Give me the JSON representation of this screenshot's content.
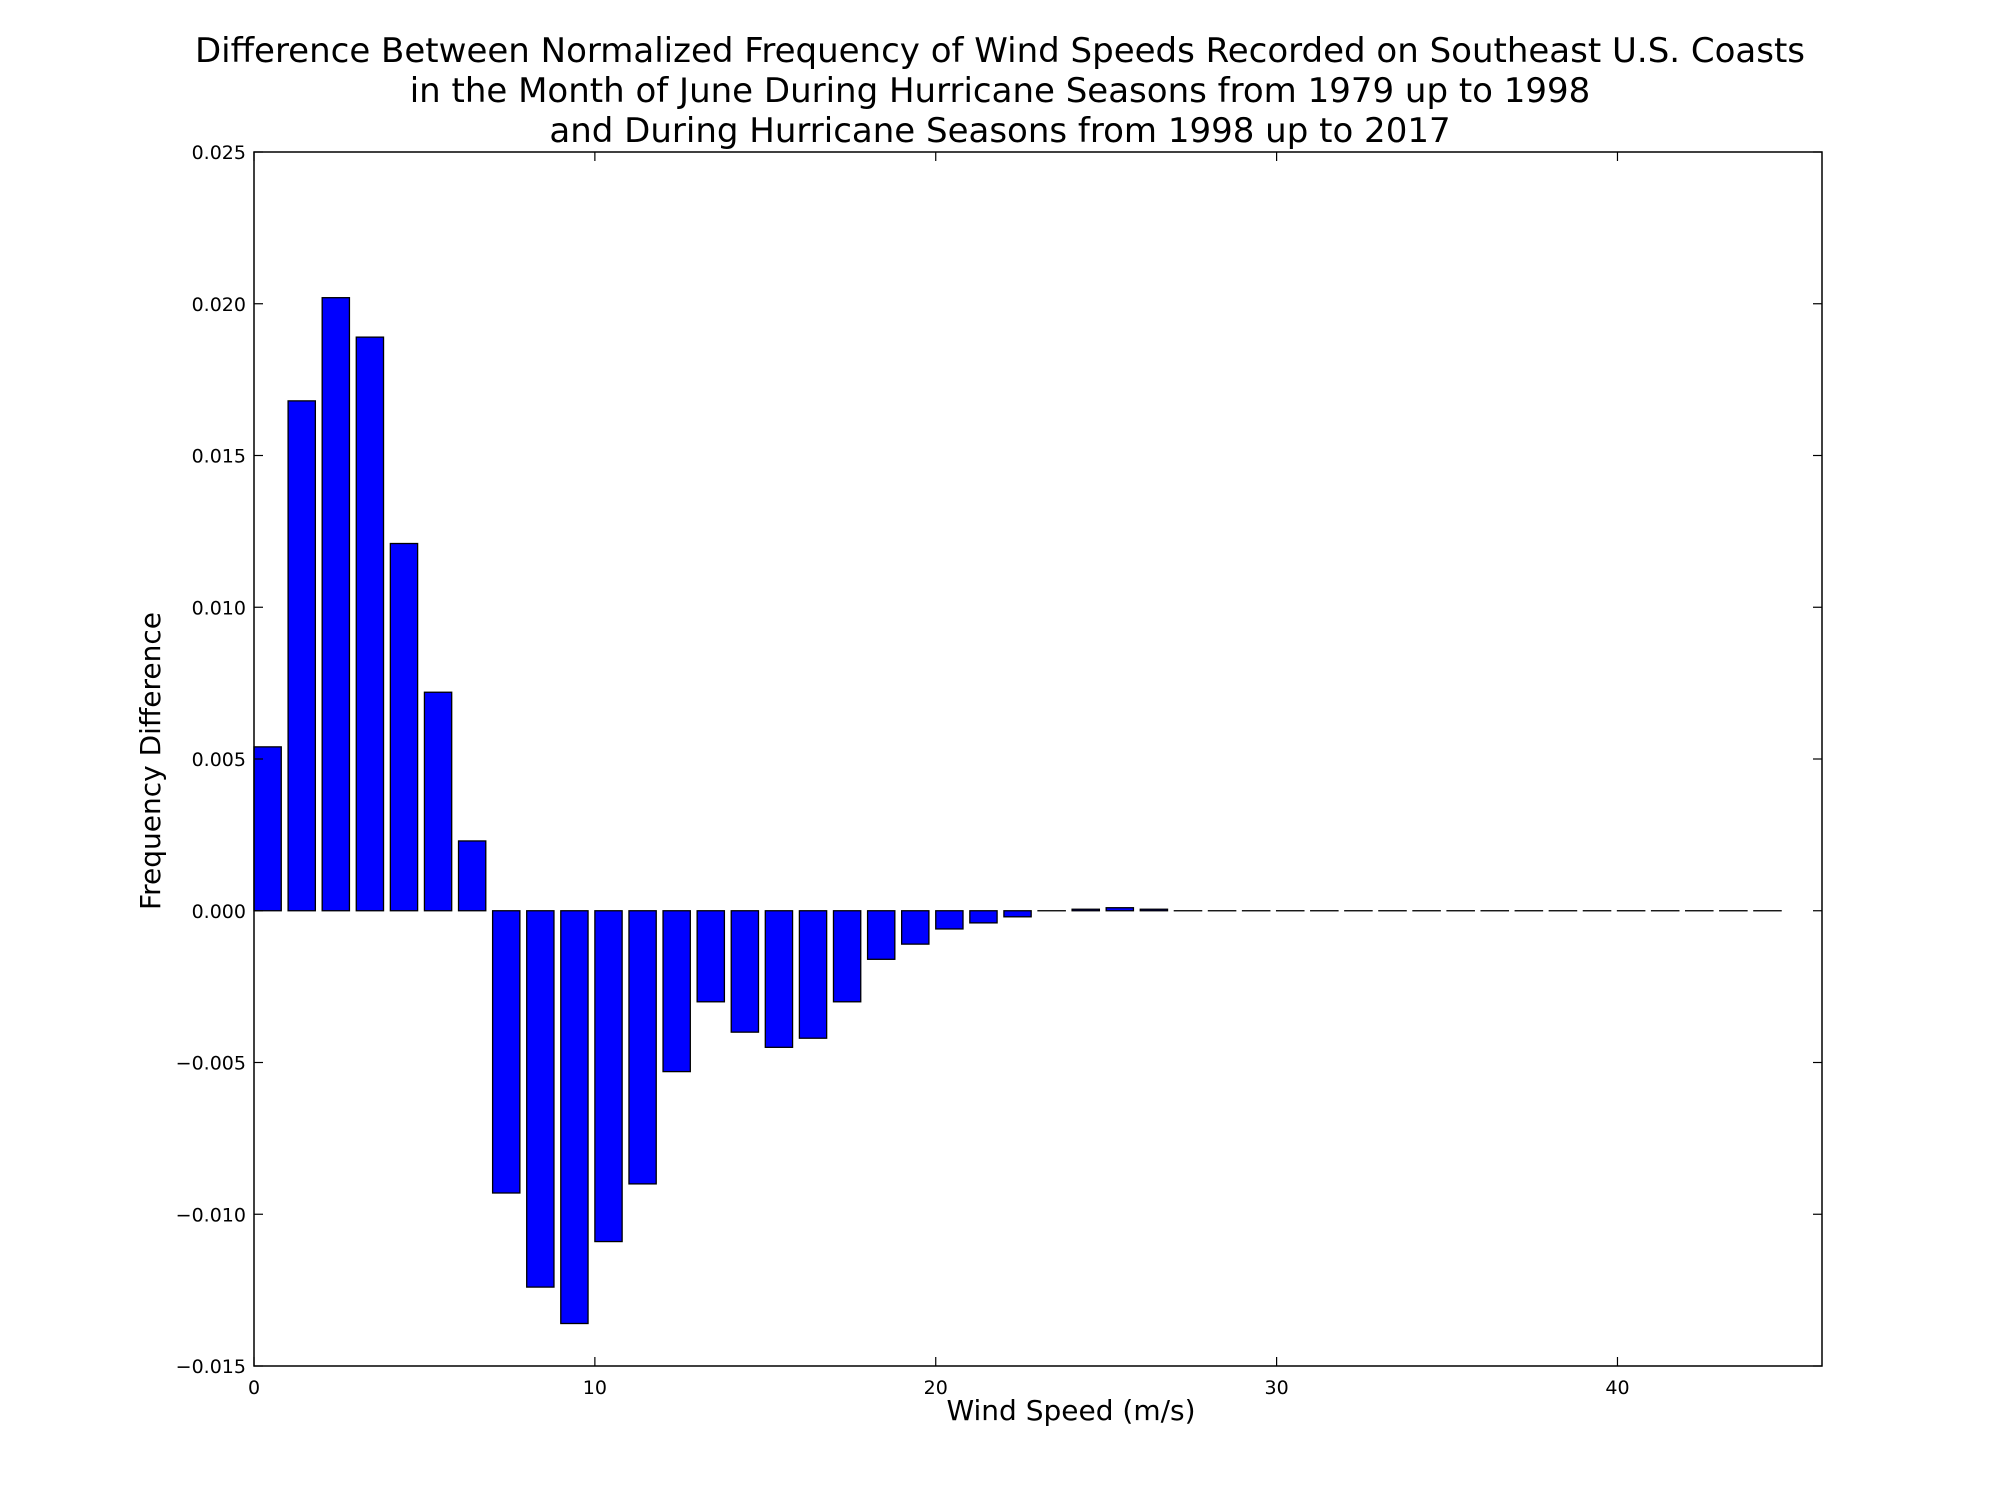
{
  "chart_data": {
    "type": "bar",
    "title_lines": [
      "Difference Between Normalized Frequency of Wind Speeds Recorded on Southeast U.S. Coasts",
      "in the Month of June During Hurricane Seasons from 1979 up to 1998",
      "and During Hurricane Seasons from 1998 up to 2017"
    ],
    "xlabel": "Wind Speed (m/s)",
    "ylabel": "Frequency Difference",
    "xlim": [
      0,
      46
    ],
    "ylim": [
      -0.015,
      0.025
    ],
    "x_ticks": [
      0,
      10,
      20,
      30,
      40
    ],
    "x_tick_labels": [
      "0",
      "10",
      "20",
      "30",
      "40"
    ],
    "y_ticks": [
      -0.015,
      -0.01,
      -0.005,
      0.0,
      0.005,
      0.01,
      0.015,
      0.02,
      0.025
    ],
    "y_tick_labels": [
      "−0.015",
      "−0.010",
      "−0.005",
      "0.000",
      "0.005",
      "0.010",
      "0.015",
      "0.020",
      "0.025"
    ],
    "bar_width": 0.8,
    "bar_color": "#0000ff",
    "x": [
      0,
      1,
      2,
      3,
      4,
      5,
      6,
      7,
      8,
      9,
      10,
      11,
      12,
      13,
      14,
      15,
      16,
      17,
      18,
      19,
      20,
      21,
      22,
      23,
      24,
      25,
      26,
      27,
      28,
      29,
      30,
      31,
      32,
      33,
      34,
      35,
      36,
      37,
      38,
      39,
      40,
      41,
      42,
      43,
      44
    ],
    "values": [
      0.0054,
      0.0168,
      0.0202,
      0.0189,
      0.0121,
      0.0072,
      0.0023,
      -0.0093,
      -0.0124,
      -0.0136,
      -0.0109,
      -0.009,
      -0.0053,
      -0.003,
      -0.004,
      -0.0045,
      -0.0042,
      -0.003,
      -0.0016,
      -0.0011,
      -0.0006,
      -0.0004,
      -0.0002,
      0.0,
      5e-05,
      0.0001,
      5e-05,
      0.0,
      0.0,
      0.0,
      0.0,
      0.0,
      0.0,
      0.0,
      0.0,
      0.0,
      0.0,
      0.0,
      0.0,
      0.0,
      0.0,
      0.0,
      0.0,
      0.0,
      0.0
    ],
    "grid": false,
    "legend": null
  }
}
